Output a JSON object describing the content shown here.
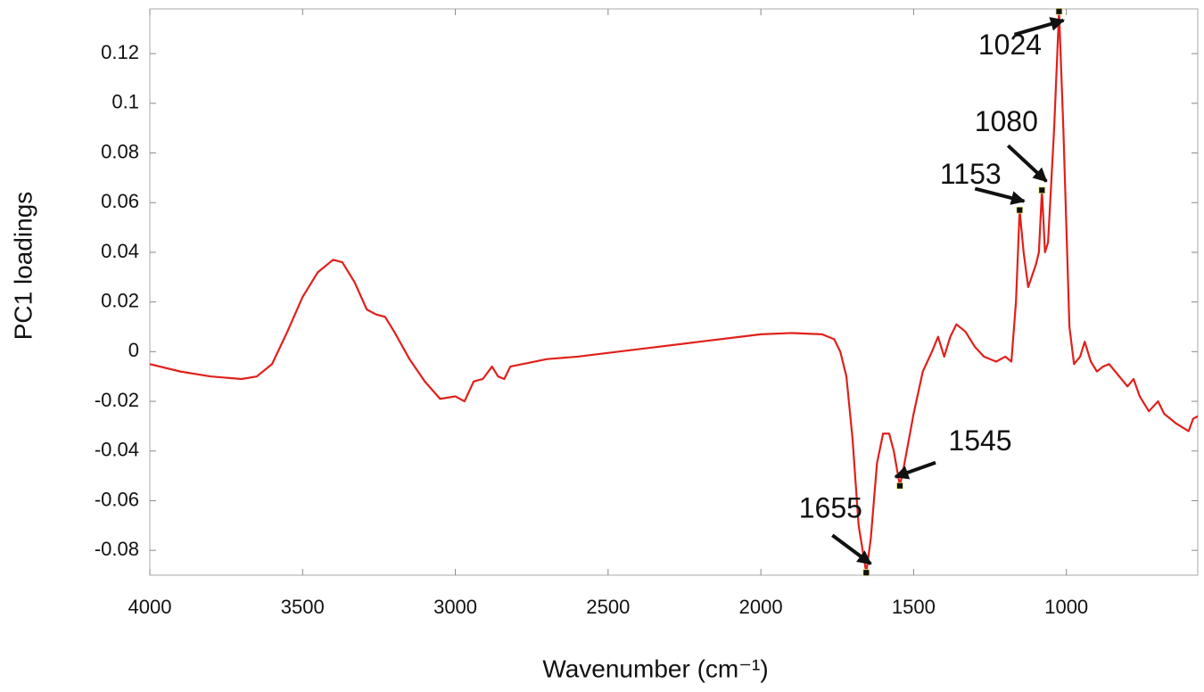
{
  "chart_data": {
    "type": "line",
    "xlabel": "Wavenumber (cm⁻¹)",
    "ylabel": "PC1 loadings",
    "xlim": [
      4000,
      570
    ],
    "ylim": [
      -0.09,
      0.138
    ],
    "xticks": [
      4000,
      3500,
      3000,
      2500,
      2000,
      1500,
      1000
    ],
    "yticks": [
      -0.08,
      -0.06,
      -0.04,
      -0.02,
      0,
      0.02,
      0.04,
      0.06,
      0.08,
      0.1,
      0.12
    ],
    "series": [
      {
        "color": "#e0201b",
        "x": [
          4000,
          3900,
          3800,
          3700,
          3650,
          3600,
          3550,
          3500,
          3450,
          3400,
          3370,
          3330,
          3290,
          3260,
          3230,
          3200,
          3150,
          3100,
          3050,
          3000,
          2970,
          2940,
          2910,
          2880,
          2860,
          2840,
          2820,
          2700,
          2600,
          2400,
          2200,
          2000,
          1900,
          1800,
          1760,
          1740,
          1720,
          1700,
          1680,
          1655,
          1640,
          1620,
          1600,
          1580,
          1565,
          1545,
          1530,
          1500,
          1470,
          1440,
          1420,
          1400,
          1380,
          1360,
          1330,
          1300,
          1270,
          1230,
          1200,
          1180,
          1165,
          1153,
          1140,
          1125,
          1100,
          1090,
          1080,
          1070,
          1060,
          1040,
          1024,
          1010,
          990,
          975,
          955,
          940,
          920,
          900,
          880,
          860,
          840,
          800,
          780,
          760,
          730,
          700,
          680,
          640,
          600,
          585,
          570
        ],
        "values": [
          -0.005,
          -0.008,
          -0.01,
          -0.011,
          -0.01,
          -0.005,
          0.008,
          0.022,
          0.032,
          0.037,
          0.036,
          0.028,
          0.017,
          0.015,
          0.014,
          0.008,
          -0.003,
          -0.012,
          -0.019,
          -0.018,
          -0.02,
          -0.012,
          -0.011,
          -0.006,
          -0.01,
          -0.011,
          -0.006,
          -0.003,
          -0.002,
          0.001,
          0.004,
          0.007,
          0.0075,
          0.007,
          0.005,
          0.0,
          -0.01,
          -0.035,
          -0.07,
          -0.089,
          -0.075,
          -0.045,
          -0.033,
          -0.033,
          -0.04,
          -0.054,
          -0.045,
          -0.025,
          -0.008,
          0.0,
          0.006,
          -0.002,
          0.006,
          0.011,
          0.008,
          0.002,
          -0.002,
          -0.004,
          -0.002,
          -0.004,
          0.02,
          0.057,
          0.04,
          0.026,
          0.035,
          0.04,
          0.065,
          0.04,
          0.044,
          0.09,
          0.137,
          0.09,
          0.01,
          -0.005,
          -0.002,
          0.004,
          -0.004,
          -0.008,
          -0.006,
          -0.005,
          -0.008,
          -0.014,
          -0.011,
          -0.018,
          -0.024,
          -0.02,
          -0.025,
          -0.029,
          -0.032,
          -0.027,
          -0.026
        ]
      }
    ],
    "annotations": [
      {
        "label": "1024",
        "x": 1024,
        "y": 0.137
      },
      {
        "label": "1080",
        "x": 1080,
        "y": 0.065
      },
      {
        "label": "1153",
        "x": 1153,
        "y": 0.057
      },
      {
        "label": "1545",
        "x": 1545,
        "y": -0.054
      },
      {
        "label": "1655",
        "x": 1655,
        "y": -0.089
      }
    ]
  }
}
